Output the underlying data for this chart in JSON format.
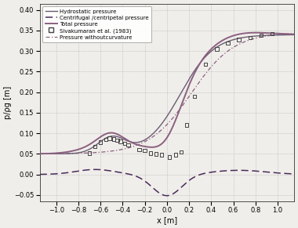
{
  "xlim": [
    -1.15,
    1.15
  ],
  "ylim": [
    -0.065,
    0.415
  ],
  "xlabel": "x [m]",
  "ylabel": "p/ρg [m]",
  "xticks": [
    -1,
    -0.8,
    -0.6,
    -0.4,
    -0.2,
    0,
    0.2,
    0.4,
    0.6,
    0.8,
    1
  ],
  "yticks": [
    -0.05,
    0,
    0.05,
    0.1,
    0.15,
    0.2,
    0.25,
    0.3,
    0.35,
    0.4
  ],
  "hydrostatic_color": "#6b5b72",
  "centrifugal_color": "#4a2a5a",
  "total_color": "#8b6080",
  "no_curvature_color": "#8a6080",
  "scatter_color": "#444444",
  "bg_color": "#f0eeea",
  "legend_labels": [
    "Hydrostatic pressure",
    "Centrifugal /centripetal pressure",
    "Total pressure",
    "Sivakumaran et al. (1983)",
    "Pressure withoutcurvature"
  ],
  "scatter_x": [
    -0.7,
    -0.65,
    -0.6,
    -0.55,
    -0.52,
    -0.48,
    -0.45,
    -0.42,
    -0.38,
    -0.35,
    -0.25,
    -0.2,
    -0.15,
    -0.1,
    -0.05,
    0.02,
    0.08,
    0.13,
    0.18,
    0.25,
    0.35,
    0.45,
    0.55,
    0.65,
    0.75,
    0.85,
    0.95
  ],
  "scatter_y": [
    0.052,
    0.068,
    0.078,
    0.085,
    0.088,
    0.086,
    0.083,
    0.08,
    0.075,
    0.072,
    0.06,
    0.058,
    0.052,
    0.05,
    0.048,
    0.042,
    0.048,
    0.055,
    0.12,
    0.19,
    0.268,
    0.305,
    0.32,
    0.328,
    0.333,
    0.338,
    0.342
  ]
}
